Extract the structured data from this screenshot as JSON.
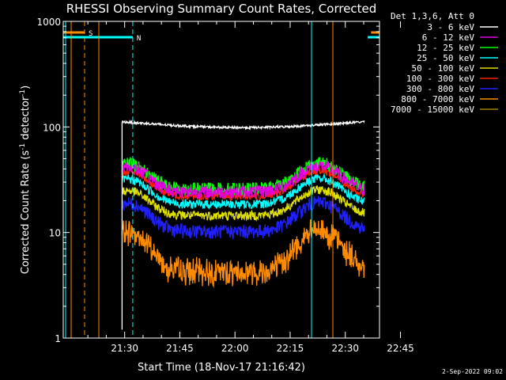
{
  "chart_data": {
    "type": "line",
    "title": "RHESSI Observing Summary Count Rates, Corrected",
    "xlabel": "Start Time (18-Nov-17 21:16:42)",
    "ylabel": "Corrected Count Rate (s",
    "ylabel_sup1": "-1",
    "ylabel_mid": " detector",
    "ylabel_sup2": "-1",
    "ylabel_end": ")",
    "yscale": "log",
    "ylim": [
      1,
      1000
    ],
    "yticks": [
      {
        "v": 1,
        "label": "1"
      },
      {
        "v": 10,
        "label": "10"
      },
      {
        "v": 100,
        "label": "100"
      },
      {
        "v": 1000,
        "label": "1000"
      }
    ],
    "xlim_min": [
      13.3,
      99.3
    ],
    "xticks": [
      {
        "m": 30,
        "label": "21:30"
      },
      {
        "m": 45,
        "label": "21:45"
      },
      {
        "m": 60,
        "label": "22:00"
      },
      {
        "m": 75,
        "label": "22:15"
      },
      {
        "m": 90,
        "label": "22:30"
      },
      {
        "m": 105,
        "label": "22:45"
      }
    ],
    "legend_title": "Det 1,3,6, Att 0",
    "legend_position": "right",
    "series": [
      {
        "name": "3 - 6 keV",
        "color": "#ffffff",
        "base": 112,
        "amp": 0.08,
        "noise": 0.05
      },
      {
        "name": "6 - 12 keV",
        "color": "#e000e0",
        "base": 42,
        "amp": 0.42,
        "noise": 0.14
      },
      {
        "name": "12 - 25 keV",
        "color": "#00ff00",
        "base": 45,
        "amp": 0.42,
        "noise": 0.14
      },
      {
        "name": "25 - 50 keV",
        "color": "#00ffff",
        "base": 32,
        "amp": 0.42,
        "noise": 0.1
      },
      {
        "name": "50 - 100 keV",
        "color": "#e0e000",
        "base": 25,
        "amp": 0.42,
        "noise": 0.1
      },
      {
        "name": "100 - 300 keV",
        "color": "#ff2000",
        "base": 38,
        "amp": 0.42,
        "noise": 0.08
      },
      {
        "name": "300 - 800 keV",
        "color": "#2020ff",
        "base": 19,
        "amp": 0.46,
        "noise": 0.15
      },
      {
        "name": "800 - 7000 keV",
        "color": "#ff8c00",
        "base": 12,
        "amp": 0.58,
        "noise": 0.18
      },
      {
        "name": "7000 - 15000 keV",
        "color": "#a08000",
        "base": 0,
        "amp": 0,
        "noise": 0
      }
    ],
    "markers": [
      {
        "label": "S",
        "color": "#ff8c00",
        "m_start": 13.3,
        "m_end": 19.1
      },
      {
        "label": "N",
        "color": "#00ffff",
        "m_start": 13.3,
        "m_end": 32.2
      },
      {
        "label": "",
        "color": "#ff8c00",
        "m_start": 97.0,
        "m_end": 99.3
      },
      {
        "label": "",
        "color": "#00ffff",
        "m_start": 96.1,
        "m_end": 99.3
      }
    ],
    "data_start_min": 29.3,
    "data_end_min": 95.2,
    "footer_date": "2-Sep-2022 09:02"
  }
}
